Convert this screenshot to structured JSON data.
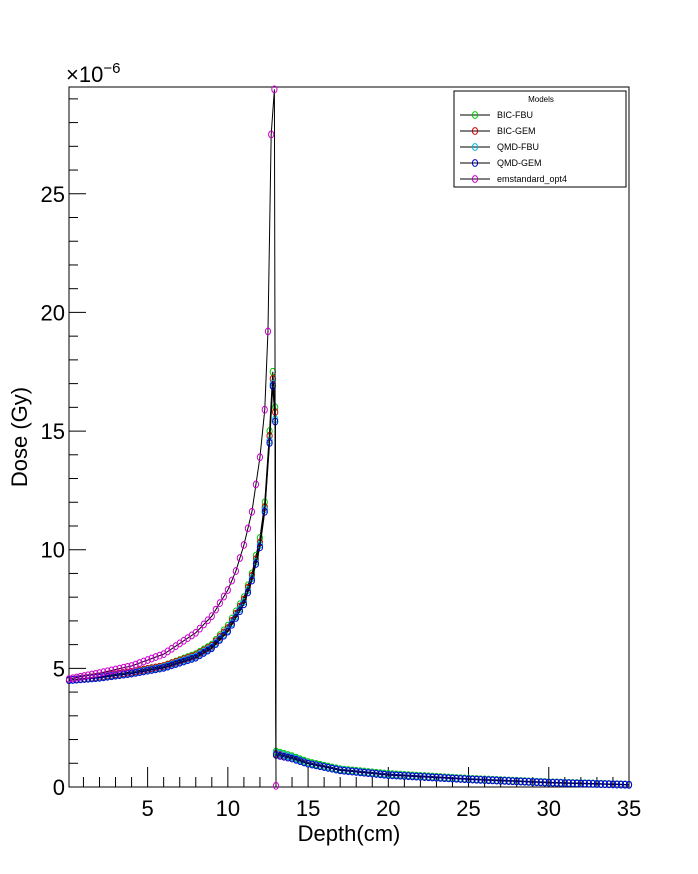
{
  "chart_data": {
    "type": "line",
    "title": "",
    "xlabel": "Depth(cm)",
    "ylabel": "Dose (Gy)",
    "xlim": [
      0.1,
      35
    ],
    "ylim": [
      0,
      29.5
    ],
    "y_multiplier_label": "×10",
    "y_multiplier_exponent": "−6",
    "x_ticks": [
      5,
      10,
      15,
      20,
      25,
      30,
      35
    ],
    "y_ticks": [
      0,
      5,
      10,
      15,
      20,
      25
    ],
    "grid": false,
    "legend_placement": "top-right",
    "legend_title": "Models",
    "series": [
      {
        "name": "BIC-FBU",
        "color": "#00cc00",
        "points": [
          [
            0.1,
            4.5
          ],
          [
            2,
            4.65
          ],
          [
            4,
            4.85
          ],
          [
            6,
            5.1
          ],
          [
            8,
            5.6
          ],
          [
            9,
            6.0
          ],
          [
            10,
            6.8
          ],
          [
            11,
            8.0
          ],
          [
            11.5,
            9.0
          ],
          [
            12,
            10.5
          ],
          [
            12.3,
            12.0
          ],
          [
            12.6,
            15.0
          ],
          [
            12.8,
            17.5
          ],
          [
            12.95,
            16.0
          ],
          [
            13.0,
            1.5
          ],
          [
            14,
            1.3
          ],
          [
            15,
            1.05
          ],
          [
            17,
            0.75
          ],
          [
            20,
            0.55
          ],
          [
            25,
            0.35
          ],
          [
            30,
            0.2
          ],
          [
            35,
            0.1
          ]
        ]
      },
      {
        "name": "BIC-GEM",
        "color": "#cc0000",
        "points": [
          [
            0.1,
            4.5
          ],
          [
            2,
            4.65
          ],
          [
            4,
            4.85
          ],
          [
            6,
            5.1
          ],
          [
            8,
            5.55
          ],
          [
            9,
            5.95
          ],
          [
            10,
            6.7
          ],
          [
            11,
            7.9
          ],
          [
            11.5,
            8.9
          ],
          [
            12,
            10.3
          ],
          [
            12.3,
            11.8
          ],
          [
            12.6,
            14.8
          ],
          [
            12.8,
            17.2
          ],
          [
            12.95,
            15.8
          ],
          [
            13.0,
            1.4
          ],
          [
            14,
            1.25
          ],
          [
            15,
            1.0
          ],
          [
            17,
            0.72
          ],
          [
            20,
            0.52
          ],
          [
            25,
            0.33
          ],
          [
            30,
            0.19
          ],
          [
            35,
            0.1
          ]
        ]
      },
      {
        "name": "QMD-FBU",
        "color": "#00bbdd",
        "points": [
          [
            0.1,
            4.5
          ],
          [
            2,
            4.62
          ],
          [
            4,
            4.8
          ],
          [
            6,
            5.05
          ],
          [
            8,
            5.5
          ],
          [
            9,
            5.9
          ],
          [
            10,
            6.6
          ],
          [
            11,
            7.8
          ],
          [
            11.5,
            8.8
          ],
          [
            12,
            10.2
          ],
          [
            12.3,
            11.7
          ],
          [
            12.6,
            14.6
          ],
          [
            12.8,
            17.0
          ],
          [
            12.95,
            15.5
          ],
          [
            13.0,
            1.45
          ],
          [
            14,
            1.25
          ],
          [
            15,
            1.0
          ],
          [
            17,
            0.72
          ],
          [
            20,
            0.52
          ],
          [
            25,
            0.33
          ],
          [
            30,
            0.19
          ],
          [
            35,
            0.1
          ]
        ]
      },
      {
        "name": "QMD-GEM",
        "color": "#0000cc",
        "points": [
          [
            0.1,
            4.5
          ],
          [
            2,
            4.6
          ],
          [
            4,
            4.78
          ],
          [
            6,
            5.02
          ],
          [
            8,
            5.45
          ],
          [
            9,
            5.85
          ],
          [
            10,
            6.55
          ],
          [
            11,
            7.7
          ],
          [
            11.5,
            8.7
          ],
          [
            12,
            10.1
          ],
          [
            12.3,
            11.6
          ],
          [
            12.6,
            14.5
          ],
          [
            12.8,
            16.9
          ],
          [
            12.95,
            15.4
          ],
          [
            13.0,
            1.35
          ],
          [
            14,
            1.2
          ],
          [
            15,
            0.98
          ],
          [
            17,
            0.7
          ],
          [
            20,
            0.5
          ],
          [
            25,
            0.32
          ],
          [
            30,
            0.18
          ],
          [
            35,
            0.09
          ]
        ]
      },
      {
        "name": "emstandard_opt4",
        "color": "#cc00cc",
        "points": [
          [
            0.1,
            4.55
          ],
          [
            2,
            4.8
          ],
          [
            4,
            5.1
          ],
          [
            6,
            5.6
          ],
          [
            8,
            6.5
          ],
          [
            9,
            7.2
          ],
          [
            10,
            8.3
          ],
          [
            10.5,
            9.1
          ],
          [
            11,
            10.2
          ],
          [
            11.5,
            11.6
          ],
          [
            12,
            13.9
          ],
          [
            12.3,
            15.9
          ],
          [
            12.5,
            19.2
          ],
          [
            12.7,
            27.5
          ],
          [
            12.9,
            29.4
          ],
          [
            13.0,
            0.05
          ]
        ]
      }
    ]
  }
}
